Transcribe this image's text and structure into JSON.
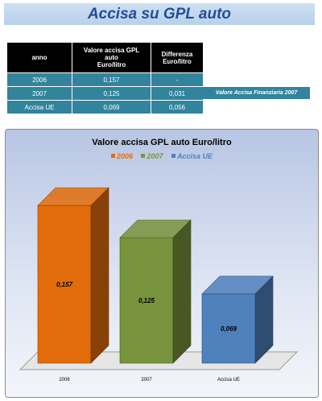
{
  "header": {
    "title": "Accisa su GPL auto"
  },
  "table": {
    "columns": [
      "anno",
      "Valore accisa GPL auto Euro/litro",
      "Differenza Euro/litro"
    ],
    "column_lines": [
      [
        "anno"
      ],
      [
        "Valore accisa GPL",
        "auto",
        "Euro/litro"
      ],
      [
        "Differenza",
        "Euro/litro"
      ]
    ],
    "rows": [
      [
        "2006",
        "0,157",
        "-"
      ],
      [
        "2007",
        "0,125",
        "0,031"
      ],
      [
        "Accisa UE",
        "0,069",
        "0,056"
      ]
    ],
    "note": "Valore Accisa Finanziaria 2007"
  },
  "chart_data": {
    "type": "bar",
    "title": "Valore accisa GPL auto Euro/litro",
    "categories": [
      "2006",
      "2007",
      "Accisa UE"
    ],
    "values": [
      0.157,
      0.125,
      0.069
    ],
    "value_labels": [
      "0,157",
      "0,125",
      "0,069"
    ],
    "series": [
      {
        "name": "2006",
        "color": "#e36c0a"
      },
      {
        "name": "2007",
        "color": "#77933c"
      },
      {
        "name": "Accisa UE",
        "color": "#4f81bd"
      }
    ],
    "legend_position": "top",
    "ylim": [
      0,
      0.17
    ],
    "grid": false,
    "style": "3d-columns"
  }
}
